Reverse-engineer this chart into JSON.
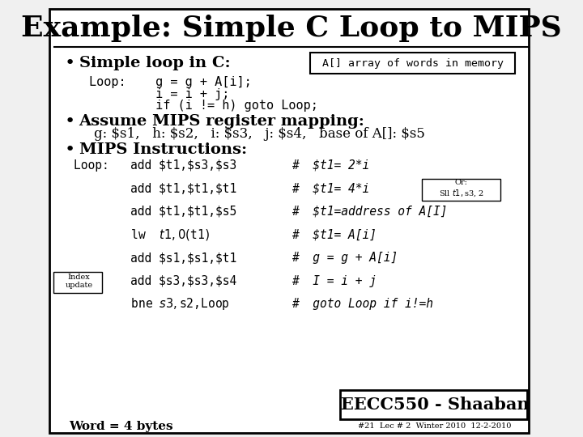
{
  "title": "Example: Simple C Loop to MIPS",
  "bg_color": "#f0f0f0",
  "slide_bg": "#ffffff",
  "border_color": "#000000",
  "footer_text": "EECC550 - Shaaban",
  "footer_sub": "#21  Lec # 2  Winter 2010  12-2-2010",
  "word_bytes": "Word = 4 bytes",
  "array_box_text": "A[] array of words in memory",
  "or_box_text": "Or:\nSll $t1, $s3, 2",
  "index_box_text": "Index\nupdate",
  "bullet1_text": "Simple loop in C:",
  "c_code": [
    "Loop:    g = g + A[i];",
    "         i = i + j;",
    "         if (i != h) goto Loop;"
  ],
  "bullet2_text": "Assume MIPS register mapping:",
  "reg_mapping": "g: $s1,   h: $s2,   i: $s3,   j: $s4,   base of A[]: $s5",
  "bullet3_text": "MIPS Instructions:",
  "mips_left": [
    "Loop:   add $t1,$s3,$s3",
    "        add $t1,$t1,$t1",
    "        add $t1,$t1,$s5",
    "        lw  $t1,0($t1)",
    "        add $s1,$s1,$t1",
    "        add $s3,$s3,$s4",
    "        bne $s3,$s2,Loop"
  ],
  "mips_right": [
    "#  $t1= 2*i",
    "#  $t1= 4*i",
    "#  $t1=address of A[I]",
    "#  $t1= A[i]",
    "#  g = g + A[i]",
    "#  I = i + j",
    "#  goto Loop if i!=h"
  ]
}
